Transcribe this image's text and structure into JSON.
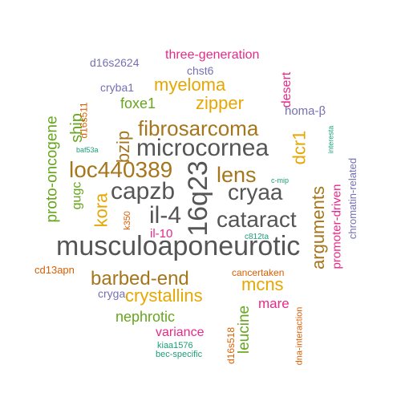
{
  "palette": {
    "gray": "#555555",
    "brown": "#a6761d",
    "mustard": "#e6a702",
    "green": "#66a61e",
    "purple": "#7570b3",
    "magenta": "#e7298a",
    "teal": "#1b9e77",
    "orange": "#d95f02"
  },
  "words": [
    {
      "text": "musculoaponeurotic",
      "color": "gray",
      "rotated": false
    },
    {
      "text": "microcornea",
      "color": "gray",
      "rotated": false
    },
    {
      "text": "capzb",
      "color": "gray",
      "rotated": false
    },
    {
      "text": "cryaa",
      "color": "gray",
      "rotated": false
    },
    {
      "text": "il-4",
      "color": "gray",
      "rotated": false
    },
    {
      "text": "cataract",
      "color": "gray",
      "rotated": false
    },
    {
      "text": "16q23",
      "color": "gray",
      "rotated": true
    },
    {
      "text": "fibrosarcoma",
      "color": "brown",
      "rotated": false
    },
    {
      "text": "loc440389",
      "color": "brown",
      "rotated": false
    },
    {
      "text": "lens",
      "color": "brown",
      "rotated": false
    },
    {
      "text": "barbed-end",
      "color": "brown",
      "rotated": false
    },
    {
      "text": "arguments",
      "color": "brown",
      "rotated": true
    },
    {
      "text": "bzip",
      "color": "brown",
      "rotated": true
    },
    {
      "text": "kora",
      "color": "mustard",
      "rotated": true
    },
    {
      "text": "dcr1",
      "color": "mustard",
      "rotated": true
    },
    {
      "text": "zipper",
      "color": "mustard",
      "rotated": false
    },
    {
      "text": "myeloma",
      "color": "mustard",
      "rotated": false
    },
    {
      "text": "crystallins",
      "color": "mustard",
      "rotated": false
    },
    {
      "text": "mcns",
      "color": "mustard",
      "rotated": false
    },
    {
      "text": "ship",
      "color": "green",
      "rotated": true
    },
    {
      "text": "foxe1",
      "color": "green",
      "rotated": false
    },
    {
      "text": "proto-oncogene",
      "color": "green",
      "rotated": true
    },
    {
      "text": "gugc",
      "color": "green",
      "rotated": true
    },
    {
      "text": "nephrotic",
      "color": "green",
      "rotated": false
    },
    {
      "text": "leucine",
      "color": "green",
      "rotated": true
    },
    {
      "text": "three-generation",
      "color": "magenta",
      "rotated": false
    },
    {
      "text": "desert",
      "color": "magenta",
      "rotated": true
    },
    {
      "text": "il-10",
      "color": "magenta",
      "rotated": false
    },
    {
      "text": "promoter-driven",
      "color": "magenta",
      "rotated": true
    },
    {
      "text": "mare",
      "color": "magenta",
      "rotated": false
    },
    {
      "text": "variance",
      "color": "magenta",
      "rotated": false
    },
    {
      "text": "d16s2624",
      "color": "purple",
      "rotated": false
    },
    {
      "text": "chst6",
      "color": "purple",
      "rotated": false
    },
    {
      "text": "cryba1",
      "color": "purple",
      "rotated": false
    },
    {
      "text": "homa-β",
      "color": "purple",
      "rotated": false
    },
    {
      "text": "chromatin-related",
      "color": "purple",
      "rotated": true
    },
    {
      "text": "cryga",
      "color": "purple",
      "rotated": false
    },
    {
      "text": "d16s511",
      "color": "orange",
      "rotated": true
    },
    {
      "text": "k350",
      "color": "orange",
      "rotated": true
    },
    {
      "text": "cd13apn",
      "color": "orange",
      "rotated": false
    },
    {
      "text": "cancertaken",
      "color": "orange",
      "rotated": false
    },
    {
      "text": "dna-interaction",
      "color": "orange",
      "rotated": true
    },
    {
      "text": "d16s518",
      "color": "orange",
      "rotated": true
    },
    {
      "text": "baf53a",
      "color": "teal",
      "rotated": false
    },
    {
      "text": "interesta",
      "color": "teal",
      "rotated": true
    },
    {
      "text": "c-mip",
      "color": "teal",
      "rotated": false
    },
    {
      "text": "c812ta",
      "color": "teal",
      "rotated": false
    },
    {
      "text": "kiaa1576",
      "color": "teal",
      "rotated": false
    },
    {
      "text": "bec-specific",
      "color": "teal",
      "rotated": false
    }
  ]
}
